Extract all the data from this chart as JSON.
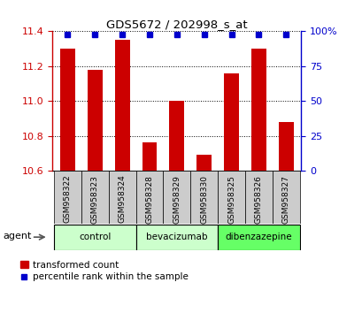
{
  "title": "GDS5672 / 202998_s_at",
  "samples": [
    "GSM958322",
    "GSM958323",
    "GSM958324",
    "GSM958328",
    "GSM958329",
    "GSM958330",
    "GSM958325",
    "GSM958326",
    "GSM958327"
  ],
  "transformed_count": [
    11.3,
    11.18,
    11.35,
    10.76,
    11.0,
    10.69,
    11.16,
    11.3,
    10.88
  ],
  "groups": [
    {
      "label": "control",
      "indices": [
        0,
        1,
        2
      ],
      "color": "#ccffcc"
    },
    {
      "label": "bevacizumab",
      "indices": [
        3,
        4,
        5
      ],
      "color": "#ccffcc"
    },
    {
      "label": "dibenzazepine",
      "indices": [
        6,
        7,
        8
      ],
      "color": "#66ff66"
    }
  ],
  "ylim": [
    10.6,
    11.4
  ],
  "yticks": [
    10.6,
    10.8,
    11.0,
    11.2,
    11.4
  ],
  "right_yticks": [
    0,
    25,
    50,
    75,
    100
  ],
  "bar_color": "#cc0000",
  "dot_color": "#0000cc",
  "bar_width": 0.55,
  "agent_label": "agent",
  "legend_bar_label": "transformed count",
  "legend_dot_label": "percentile rank within the sample",
  "tick_color_left": "#cc0000",
  "tick_color_right": "#0000cc",
  "sample_cell_color": "#cccccc",
  "dot_percentile": 0.975
}
